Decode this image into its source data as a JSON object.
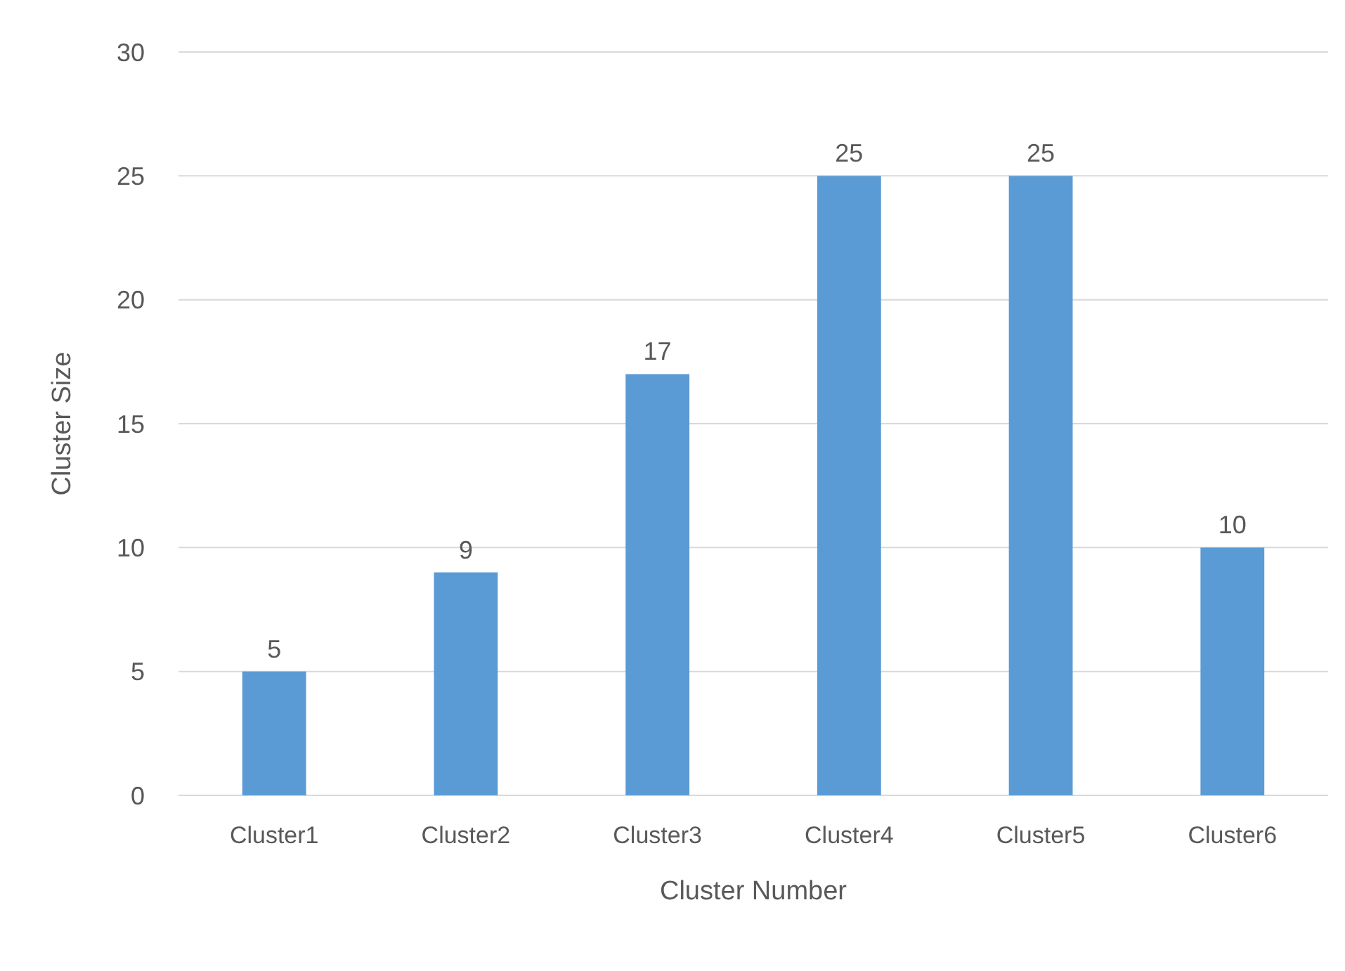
{
  "chart_data": {
    "type": "bar",
    "xlabel": "Cluster Number",
    "ylabel": "Cluster Size",
    "categories": [
      "Cluster1",
      "Cluster2",
      "Cluster3",
      "Cluster4",
      "Cluster5",
      "Cluster6"
    ],
    "values": [
      5,
      9,
      17,
      25,
      25,
      10
    ],
    "color": "#5b9bd5",
    "ylim": [
      0,
      30
    ],
    "yticks": [
      0,
      5,
      10,
      15,
      20,
      25,
      30
    ],
    "grid": "y",
    "data_labels": true
  }
}
